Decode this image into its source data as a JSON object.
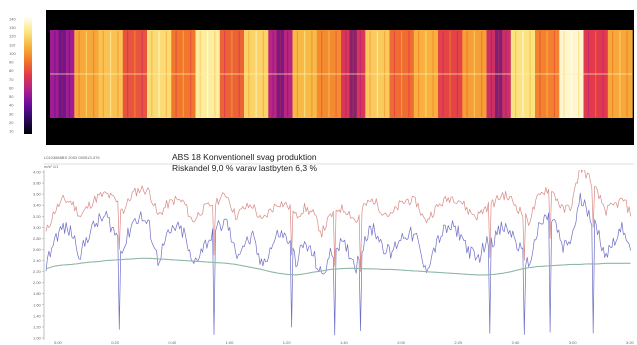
{
  "chart_data": [
    {
      "type": "heatmap",
      "colormap": [
        "#000000",
        "#2a0a5e",
        "#6a0f9e",
        "#b0208c",
        "#e23a4a",
        "#f27a2a",
        "#f8b640",
        "#fbe98a",
        "#ffffff"
      ],
      "colorbar_labels": [
        "140",
        "130",
        "120",
        "110",
        "100",
        "90",
        "80",
        "70",
        "60",
        "50",
        "40",
        "30",
        "20",
        "10"
      ],
      "columns": [
        {
          "level": 0.35,
          "band": "dark"
        },
        {
          "level": 0.72,
          "band": "bright"
        },
        {
          "level": 0.78,
          "band": "bright"
        },
        {
          "level": 0.55,
          "band": "mid"
        },
        {
          "level": 0.84,
          "band": "bright"
        },
        {
          "level": 0.62,
          "band": "mid"
        },
        {
          "level": 0.9,
          "band": "bright"
        },
        {
          "level": 0.58,
          "band": "mid"
        },
        {
          "level": 0.82,
          "band": "bright"
        },
        {
          "level": 0.4,
          "band": "dark"
        },
        {
          "level": 0.76,
          "band": "bright"
        },
        {
          "level": 0.66,
          "band": "mid"
        },
        {
          "level": 0.48,
          "band": "dark"
        },
        {
          "level": 0.8,
          "band": "bright"
        },
        {
          "level": 0.6,
          "band": "mid"
        },
        {
          "level": 0.74,
          "band": "bright"
        },
        {
          "level": 0.52,
          "band": "mid"
        },
        {
          "level": 0.7,
          "band": "bright"
        },
        {
          "level": 0.45,
          "band": "dark"
        },
        {
          "level": 0.86,
          "band": "bright"
        },
        {
          "level": 0.64,
          "band": "mid"
        },
        {
          "level": 0.95,
          "band": "bright"
        },
        {
          "level": 0.5,
          "band": "mid"
        },
        {
          "level": 0.72,
          "band": "bright"
        }
      ]
    },
    {
      "type": "line",
      "title": "ABS 18 Konventionell svag produktion",
      "subtitle": "Riskandel 9,0 % varav lastbyten 6,3 %",
      "header_left": "L0103888BS 2003 050513-376",
      "axis_corner_label": "m/s²  1/1",
      "y_tick_labels": [
        "4.00",
        "3.80",
        "3.60",
        "3.40",
        "3.20",
        "3.00",
        "2.80",
        "2.60",
        "2.40",
        "2.20",
        "2.00",
        "1.80",
        "1.60",
        "1.40",
        "1.20",
        "1.00"
      ],
      "x_tick_labels": [
        "0:00",
        "0:20",
        "0:40",
        "1:00",
        "1:20",
        "1:40",
        "2:00",
        "2:20",
        "2:40",
        "3:00",
        "3:20"
      ],
      "ylim": [
        1.0,
        4.0
      ],
      "series": [
        {
          "color": "#d98a86",
          "values": [
            2.9,
            3.3,
            3.5,
            3.45,
            3.2,
            3.4,
            3.55,
            3.6,
            3.5,
            3.3,
            3.6,
            3.7,
            3.65,
            3.2,
            3.4,
            3.5,
            3.45,
            3.1,
            3.3,
            3.4,
            3.5,
            3.6,
            3.2,
            3.35,
            3.4,
            3.1,
            3.3,
            3.45,
            3.4,
            3.2,
            3.35,
            3.25,
            2.9,
            3.2,
            3.35,
            3.3,
            3.1,
            3.4,
            3.5,
            3.3,
            3.2,
            3.4,
            3.5,
            3.45,
            3.1,
            3.3,
            3.45,
            3.55,
            3.5,
            3.3,
            3.2,
            3.35,
            3.45,
            3.6,
            3.5,
            3.3,
            3.1,
            3.5,
            3.7,
            3.6,
            3.3,
            3.4,
            4.1,
            3.9,
            3.6,
            3.3,
            3.4,
            3.5,
            3.2
          ]
        },
        {
          "color": "#6f6fc8",
          "values": [
            2.3,
            2.8,
            3.0,
            2.9,
            2.5,
            2.9,
            3.1,
            3.2,
            2.9,
            2.6,
            3.1,
            3.2,
            3.0,
            2.4,
            2.8,
            3.0,
            2.9,
            2.3,
            2.6,
            2.8,
            3.0,
            3.1,
            2.5,
            2.7,
            2.8,
            2.3,
            2.6,
            2.9,
            2.8,
            2.4,
            2.7,
            2.5,
            2.1,
            2.5,
            2.7,
            2.6,
            2.3,
            2.8,
            3.0,
            2.7,
            2.5,
            2.8,
            2.9,
            2.8,
            2.2,
            2.6,
            2.9,
            3.0,
            2.9,
            2.6,
            2.4,
            2.7,
            2.8,
            3.0,
            2.9,
            2.6,
            2.3,
            2.9,
            3.2,
            3.1,
            2.6,
            2.8,
            3.5,
            3.3,
            2.9,
            2.5,
            2.8,
            3.0,
            2.6
          ]
        },
        {
          "color": "#8fb7a6",
          "values": [
            2.25,
            2.3,
            2.32,
            2.33,
            2.35,
            2.37,
            2.38,
            2.4,
            2.41,
            2.42,
            2.43,
            2.44,
            2.44,
            2.43,
            2.42,
            2.41,
            2.4,
            2.39,
            2.38,
            2.37,
            2.36,
            2.35,
            2.33,
            2.3,
            2.27,
            2.24,
            2.2,
            2.17,
            2.15,
            2.14,
            2.16,
            2.19,
            2.21,
            2.24,
            2.25,
            2.26,
            2.26,
            2.25,
            2.25,
            2.24,
            2.24,
            2.23,
            2.22,
            2.21,
            2.2,
            2.19,
            2.18,
            2.17,
            2.16,
            2.15,
            2.14,
            2.14,
            2.15,
            2.17,
            2.2,
            2.24,
            2.27,
            2.29,
            2.3,
            2.31,
            2.32,
            2.33,
            2.33,
            2.34,
            2.34,
            2.35,
            2.35,
            2.35,
            2.35
          ]
        }
      ],
      "dips": [
        8,
        19,
        28,
        33,
        36,
        51,
        55,
        58,
        63
      ]
    }
  ]
}
